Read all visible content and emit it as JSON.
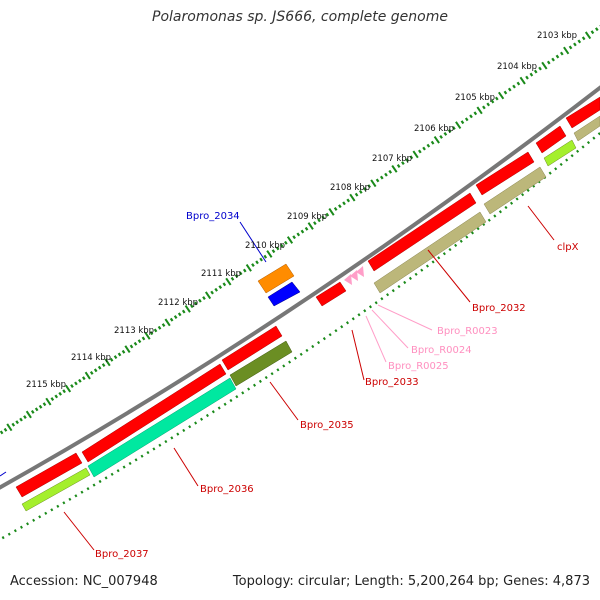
{
  "title": "Polaromonas sp. JS666, complete genome",
  "footer": {
    "accession": "Accession: NC_007948",
    "summary": "Topology: circular; Length: 5,200,264 bp; Genes: 4,873"
  },
  "scale_labels": [
    "2103 kbp",
    "2104 kbp",
    "2105 kbp",
    "2106 kbp",
    "2107 kbp",
    "2108 kbp",
    "2109 kbp",
    "2110 kbp",
    "2111 kbp",
    "2112 kbp",
    "2113 kbp",
    "2114 kbp",
    "2115 kbp"
  ],
  "gene_labels": {
    "bpro_2034": "Bpro_2034",
    "clpx": "clpX",
    "bpro_2032": "Bpro_2032",
    "bpro_r0023": "Bpro_R0023",
    "bpro_r0024": "Bpro_R0024",
    "bpro_r0025": "Bpro_R0025",
    "bpro_2033": "Bpro_2033",
    "bpro_2035": "Bpro_2035",
    "bpro_2036": "Bpro_2036",
    "bpro_2037": "Bpro_2037"
  },
  "colors": {
    "cds": "#ff0000",
    "trna": "#ff9ec8",
    "backbone": "#777777",
    "scale": "#1a8a1a",
    "cog_tan": "#bcb77a",
    "cog_olive": "#6b8e23",
    "cog_aqua": "#00e8a0",
    "cog_lime": "#a4ef2c",
    "orange": "#ff8c00",
    "blue": "#0000ff"
  }
}
